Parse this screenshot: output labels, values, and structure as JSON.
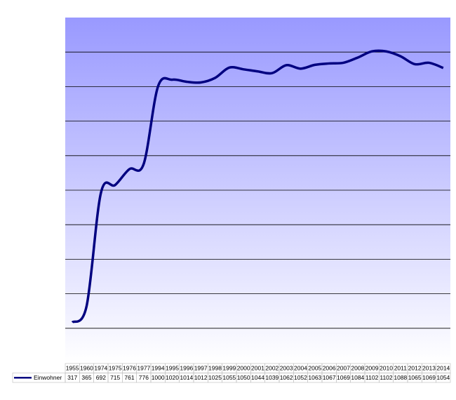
{
  "chart_data": {
    "type": "line",
    "categories": [
      "1955",
      "1960",
      "1974",
      "1975",
      "1976",
      "1977",
      "1994",
      "1995",
      "1996",
      "1997",
      "1998",
      "1999",
      "2000",
      "2001",
      "2002",
      "2003",
      "2004",
      "2005",
      "2006",
      "2007",
      "2008",
      "2009",
      "2010",
      "2011",
      "2012",
      "2013",
      "2014"
    ],
    "series": [
      {
        "name": "Einwohner",
        "color": "#000080",
        "values": [
          317,
          365,
          692,
          715,
          761,
          776,
          1000,
          1020,
          1014,
          1012,
          1025,
          1055,
          1050,
          1044,
          1039,
          1062,
          1052,
          1063,
          1067,
          1069,
          1084,
          1102,
          1102,
          1088,
          1065,
          1069,
          1054
        ]
      }
    ],
    "ylim": [
      200,
      1200
    ],
    "yticks": [
      300,
      400,
      500,
      600,
      700,
      800,
      900,
      1000,
      1100
    ],
    "grid": true
  }
}
